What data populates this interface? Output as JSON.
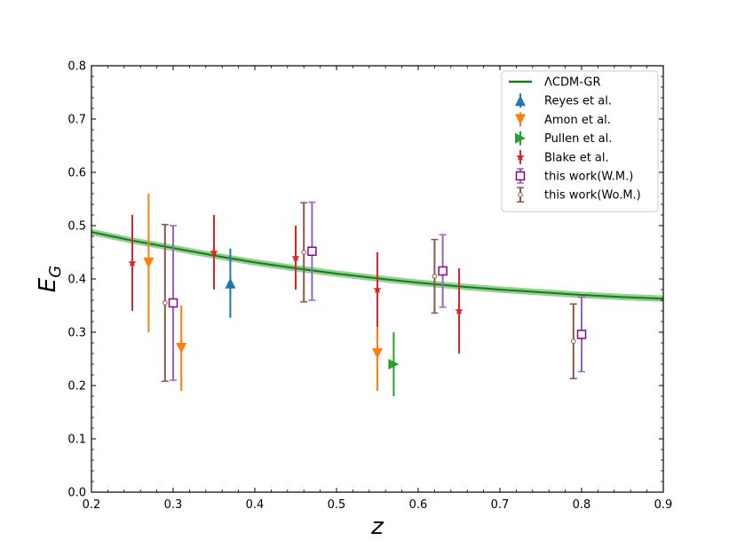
{
  "chart_data": {
    "type": "scatter",
    "title": "",
    "xlabel": "z",
    "ylabel_main": "E",
    "ylabel_sub": "G",
    "xlim": [
      0.2,
      0.9
    ],
    "ylim": [
      0.0,
      0.8
    ],
    "xticks": [
      "0.2",
      "0.3",
      "0.4",
      "0.5",
      "0.6",
      "0.7",
      "0.8",
      "0.9"
    ],
    "yticks": [
      "0.0",
      "0.1",
      "0.2",
      "0.3",
      "0.4",
      "0.5",
      "0.6",
      "0.7",
      "0.8"
    ],
    "grid": false,
    "legend_position": "top-right",
    "model_curve": {
      "name": "ΛCDM-GR",
      "color": "#1a7a1a",
      "band_color": "#7fc97f",
      "x": [
        0.2,
        0.25,
        0.3,
        0.35,
        0.4,
        0.45,
        0.5,
        0.55,
        0.6,
        0.65,
        0.7,
        0.75,
        0.8,
        0.85,
        0.9
      ],
      "y": [
        0.488,
        0.472,
        0.458,
        0.444,
        0.431,
        0.42,
        0.41,
        0.401,
        0.393,
        0.386,
        0.38,
        0.375,
        0.37,
        0.366,
        0.363
      ],
      "band_halfwidth": 0.006
    },
    "series": [
      {
        "name": "Reyes et al.",
        "marker": "triangle-up",
        "color": "#1f77b4",
        "points": [
          {
            "x": 0.37,
            "y": 0.392,
            "err": 0.065
          }
        ]
      },
      {
        "name": "Amon et al.",
        "marker": "triangle-down",
        "color": "#ff7f0e",
        "points": [
          {
            "x": 0.27,
            "y": 0.43,
            "err": 0.13
          },
          {
            "x": 0.31,
            "y": 0.27,
            "err": 0.08
          },
          {
            "x": 0.55,
            "y": 0.26,
            "err": 0.07
          }
        ]
      },
      {
        "name": "Pullen et al.",
        "marker": "triangle-right",
        "color": "#2ca02c",
        "points": [
          {
            "x": 0.57,
            "y": 0.24,
            "err": 0.06
          }
        ]
      },
      {
        "name": "Blake et al.",
        "marker": "star",
        "color": "#d62728",
        "points": [
          {
            "x": 0.25,
            "y": 0.43,
            "err": 0.09
          },
          {
            "x": 0.35,
            "y": 0.45,
            "err": 0.07
          },
          {
            "x": 0.45,
            "y": 0.44,
            "err": 0.06
          },
          {
            "x": 0.55,
            "y": 0.38,
            "err": 0.07
          },
          {
            "x": 0.65,
            "y": 0.34,
            "err": 0.08
          }
        ]
      },
      {
        "name": "this work(W.M.)",
        "marker": "square-open",
        "color": "#8b008b",
        "err_color": "#9467bd",
        "points": [
          {
            "x": 0.3,
            "y": 0.355,
            "err": 0.145
          },
          {
            "x": 0.47,
            "y": 0.452,
            "err": 0.092
          },
          {
            "x": 0.63,
            "y": 0.415,
            "err": 0.068
          },
          {
            "x": 0.8,
            "y": 0.296,
            "err": 0.07
          }
        ]
      },
      {
        "name": "this work(Wo.M.)",
        "marker": "circle-open",
        "color": "#8c564b",
        "points": [
          {
            "x": 0.29,
            "y": 0.355,
            "err": 0.147
          },
          {
            "x": 0.46,
            "y": 0.45,
            "err": 0.093
          },
          {
            "x": 0.62,
            "y": 0.405,
            "err": 0.069
          },
          {
            "x": 0.79,
            "y": 0.283,
            "err": 0.07
          }
        ]
      }
    ]
  }
}
